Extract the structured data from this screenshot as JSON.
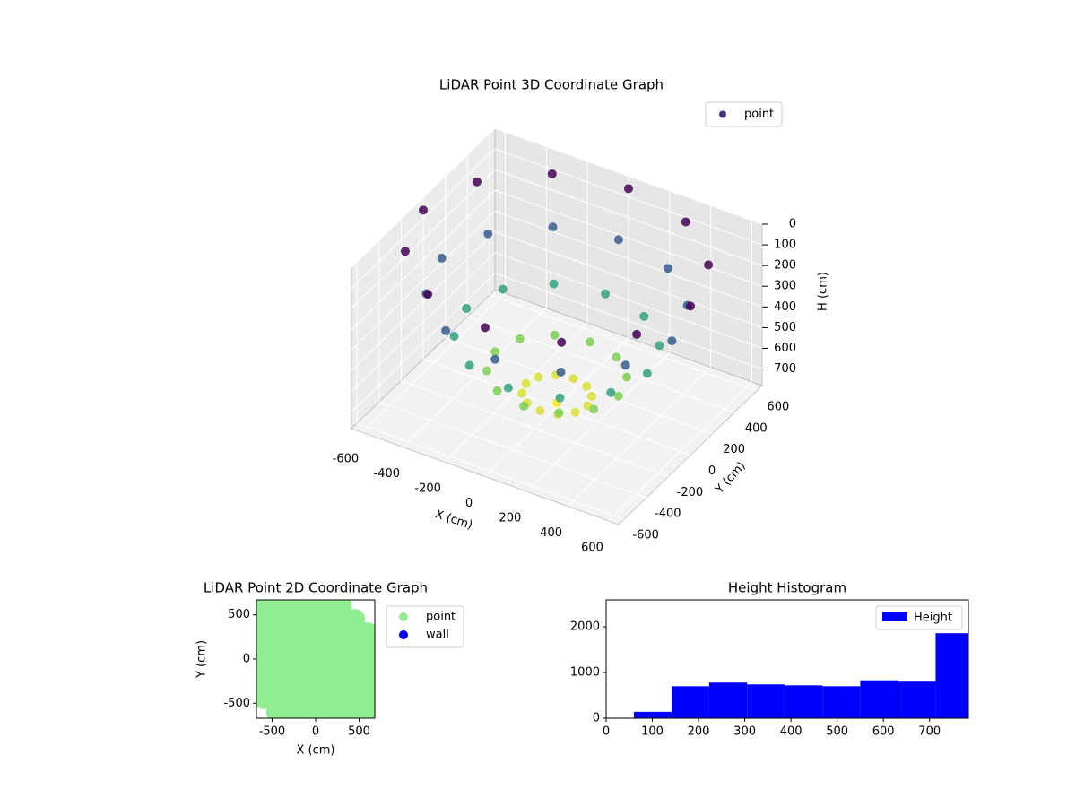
{
  "chart_data": [
    {
      "type": "scatter3d",
      "title": "LiDAR Point 3D Coordinate Graph",
      "x_label": "X (cm)",
      "y_label": "Y (cm)",
      "z_label": "H (cm)",
      "xlim": [
        -650,
        650
      ],
      "ylim": [
        -650,
        650
      ],
      "zlim": [
        0,
        780
      ],
      "z_inverted": true,
      "xticks": [
        -600,
        -400,
        -200,
        0,
        200,
        400,
        600
      ],
      "yticks": [
        -600,
        -400,
        -200,
        0,
        200,
        400,
        600
      ],
      "zticks": [
        0,
        100,
        200,
        300,
        400,
        500,
        600,
        700
      ],
      "grid": true,
      "legend": "upper right",
      "colormap": [
        "#440154",
        "#3b528b",
        "#21918c",
        "#5ec962",
        "#fde725"
      ],
      "series": [
        {
          "name": "point",
          "color": "#46327e",
          "x": [
            650,
            563,
            325,
            0,
            -325,
            -563,
            -650,
            -563,
            -325,
            0,
            325,
            563,
            560,
            485,
            280,
            0,
            -280,
            -485,
            -560,
            -485,
            -280,
            0,
            280,
            485,
            440,
            381,
            220,
            0,
            -220,
            -381,
            -440,
            -381,
            -220,
            0,
            220,
            381,
            300,
            260,
            150,
            0,
            -150,
            -260,
            -300,
            -260,
            -150,
            0,
            150,
            260,
            150,
            130,
            75,
            0,
            -75,
            -130,
            -150,
            -130,
            -75,
            0,
            75,
            130,
            0
          ],
          "y": [
            0,
            325,
            563,
            650,
            563,
            325,
            0,
            -325,
            -563,
            -650,
            -563,
            -325,
            0,
            280,
            485,
            560,
            485,
            280,
            0,
            -280,
            -485,
            -560,
            -485,
            -280,
            0,
            220,
            381,
            440,
            381,
            220,
            0,
            -220,
            -381,
            -440,
            -381,
            -220,
            0,
            150,
            260,
            300,
            260,
            150,
            0,
            -150,
            -260,
            -300,
            -260,
            -150,
            0,
            75,
            130,
            150,
            130,
            75,
            0,
            -75,
            -130,
            -150,
            -130,
            -75,
            0
          ],
          "z": [
            60,
            60,
            60,
            60,
            60,
            60,
            60,
            60,
            60,
            60,
            60,
            60,
            260,
            260,
            260,
            260,
            260,
            260,
            260,
            260,
            260,
            260,
            260,
            260,
            460,
            460,
            460,
            460,
            460,
            460,
            460,
            460,
            460,
            460,
            460,
            460,
            620,
            620,
            620,
            620,
            620,
            620,
            620,
            620,
            620,
            620,
            620,
            620,
            720,
            720,
            720,
            720,
            720,
            720,
            720,
            720,
            720,
            720,
            720,
            720,
            760
          ]
        }
      ]
    },
    {
      "type": "scatter",
      "title": "LiDAR Point 2D Coordinate Graph",
      "x_label": "X (cm)",
      "y_label": "Y (cm)",
      "xlim": [
        -680,
        680
      ],
      "ylim": [
        -670,
        670
      ],
      "xticks": [
        -500,
        0,
        500
      ],
      "yticks": [
        -500,
        0,
        500
      ],
      "legend": "outside upper right",
      "series": [
        {
          "name": "point",
          "color": "#90ee90",
          "x": [
            -600,
            -450,
            -300,
            -150,
            0,
            150,
            300,
            -600,
            -450,
            -300,
            -150,
            0,
            150,
            300,
            450,
            -600,
            -450,
            -300,
            -150,
            0,
            150,
            300,
            450,
            600,
            -600,
            -450,
            -300,
            -150,
            0,
            150,
            300,
            450,
            600,
            -600,
            -450,
            -300,
            -150,
            0,
            150,
            300,
            450,
            600,
            -600,
            -450,
            -300,
            -150,
            0,
            150,
            300,
            450,
            600,
            -600,
            -450,
            -300,
            -150,
            0,
            150,
            300,
            450,
            600,
            -600,
            -450,
            -300,
            -150,
            0,
            150,
            300,
            450,
            600,
            -450,
            -300,
            -150,
            0,
            150,
            300,
            450,
            600
          ],
          "y": [
            600,
            600,
            600,
            600,
            600,
            600,
            600,
            450,
            450,
            450,
            450,
            450,
            450,
            450,
            450,
            300,
            300,
            300,
            300,
            300,
            300,
            300,
            300,
            300,
            150,
            150,
            150,
            150,
            150,
            150,
            150,
            150,
            150,
            0,
            0,
            0,
            0,
            0,
            0,
            0,
            0,
            0,
            -150,
            -150,
            -150,
            -150,
            -150,
            -150,
            -150,
            -150,
            -150,
            -300,
            -300,
            -300,
            -300,
            -300,
            -300,
            -300,
            -300,
            -300,
            -450,
            -450,
            -450,
            -450,
            -450,
            -450,
            -450,
            -450,
            -450,
            -600,
            -600,
            -600,
            -600,
            -600,
            -600,
            -600,
            -600
          ]
        },
        {
          "name": "wall",
          "color": "#0000ff",
          "x": [],
          "y": []
        }
      ]
    },
    {
      "type": "histogram",
      "title": "Height Histogram",
      "legend": "upper right",
      "series_name": "Height",
      "color": "#0000ff",
      "bins": [
        60,
        142,
        223,
        305,
        386,
        468,
        550,
        631,
        713,
        794
      ],
      "values": [
        140,
        700,
        780,
        740,
        720,
        700,
        830,
        800,
        1860
      ],
      "xlim": [
        0,
        784
      ],
      "ylim": [
        0,
        2590
      ],
      "xticks": [
        0,
        100,
        200,
        300,
        400,
        500,
        600,
        700
      ],
      "yticks": [
        0,
        1000,
        2000
      ]
    }
  ]
}
